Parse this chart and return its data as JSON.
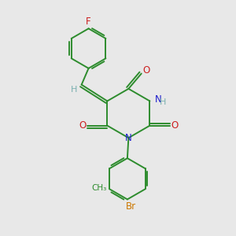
{
  "bg_color": "#e8e8e8",
  "bond_color": "#2d8c2d",
  "N_color": "#2020cc",
  "O_color": "#cc2020",
  "Br_color": "#cc7700",
  "F_color": "#cc2020",
  "H_color": "#7ab0b0",
  "figsize": [
    3.0,
    3.0
  ],
  "dpi": 100,
  "xlim": [
    0,
    10
  ],
  "ylim": [
    0,
    10
  ]
}
